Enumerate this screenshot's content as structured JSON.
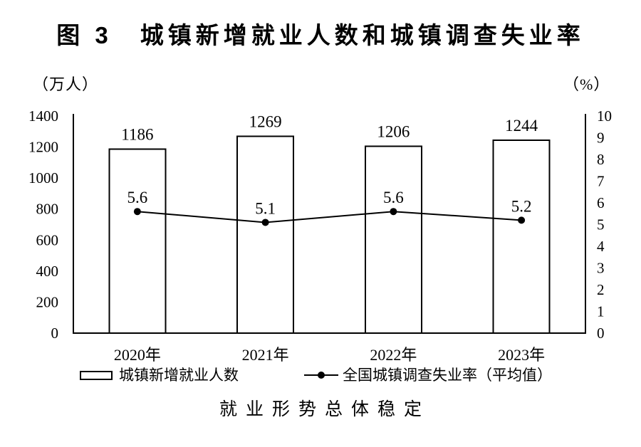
{
  "title": "图 3　城镇新增就业人数和城镇调查失业率",
  "caption": "就业形势总体稳定",
  "chart_data": {
    "type": "bar+line",
    "title": "图 3　城镇新增就业人数和城镇调查失业率",
    "categories": [
      "2020年",
      "2021年",
      "2022年",
      "2023年"
    ],
    "series": [
      {
        "name": "城镇新增就业人数",
        "type": "bar",
        "axis": "left",
        "values": [
          1186,
          1269,
          1206,
          1244
        ]
      },
      {
        "name": "全国城镇调查失业率（平均值）",
        "type": "line",
        "axis": "right",
        "values": [
          5.6,
          5.1,
          5.6,
          5.2
        ]
      }
    ],
    "left_axis": {
      "label": "（万人）",
      "min": 0,
      "max": 1400,
      "ticks": [
        0,
        200,
        400,
        600,
        800,
        1000,
        1200,
        1400
      ]
    },
    "right_axis": {
      "label": "（%）",
      "min": 0,
      "max": 10,
      "ticks": [
        0,
        1,
        2,
        3,
        4,
        5,
        6,
        7,
        8,
        9,
        10
      ]
    },
    "grid": false,
    "legend_position": "bottom",
    "annotation": "就业形势总体稳定",
    "colors": {
      "bar_fill": "#ffffff",
      "bar_stroke": "#000000",
      "line": "#000000",
      "text": "#000000",
      "background": "#ffffff"
    }
  }
}
